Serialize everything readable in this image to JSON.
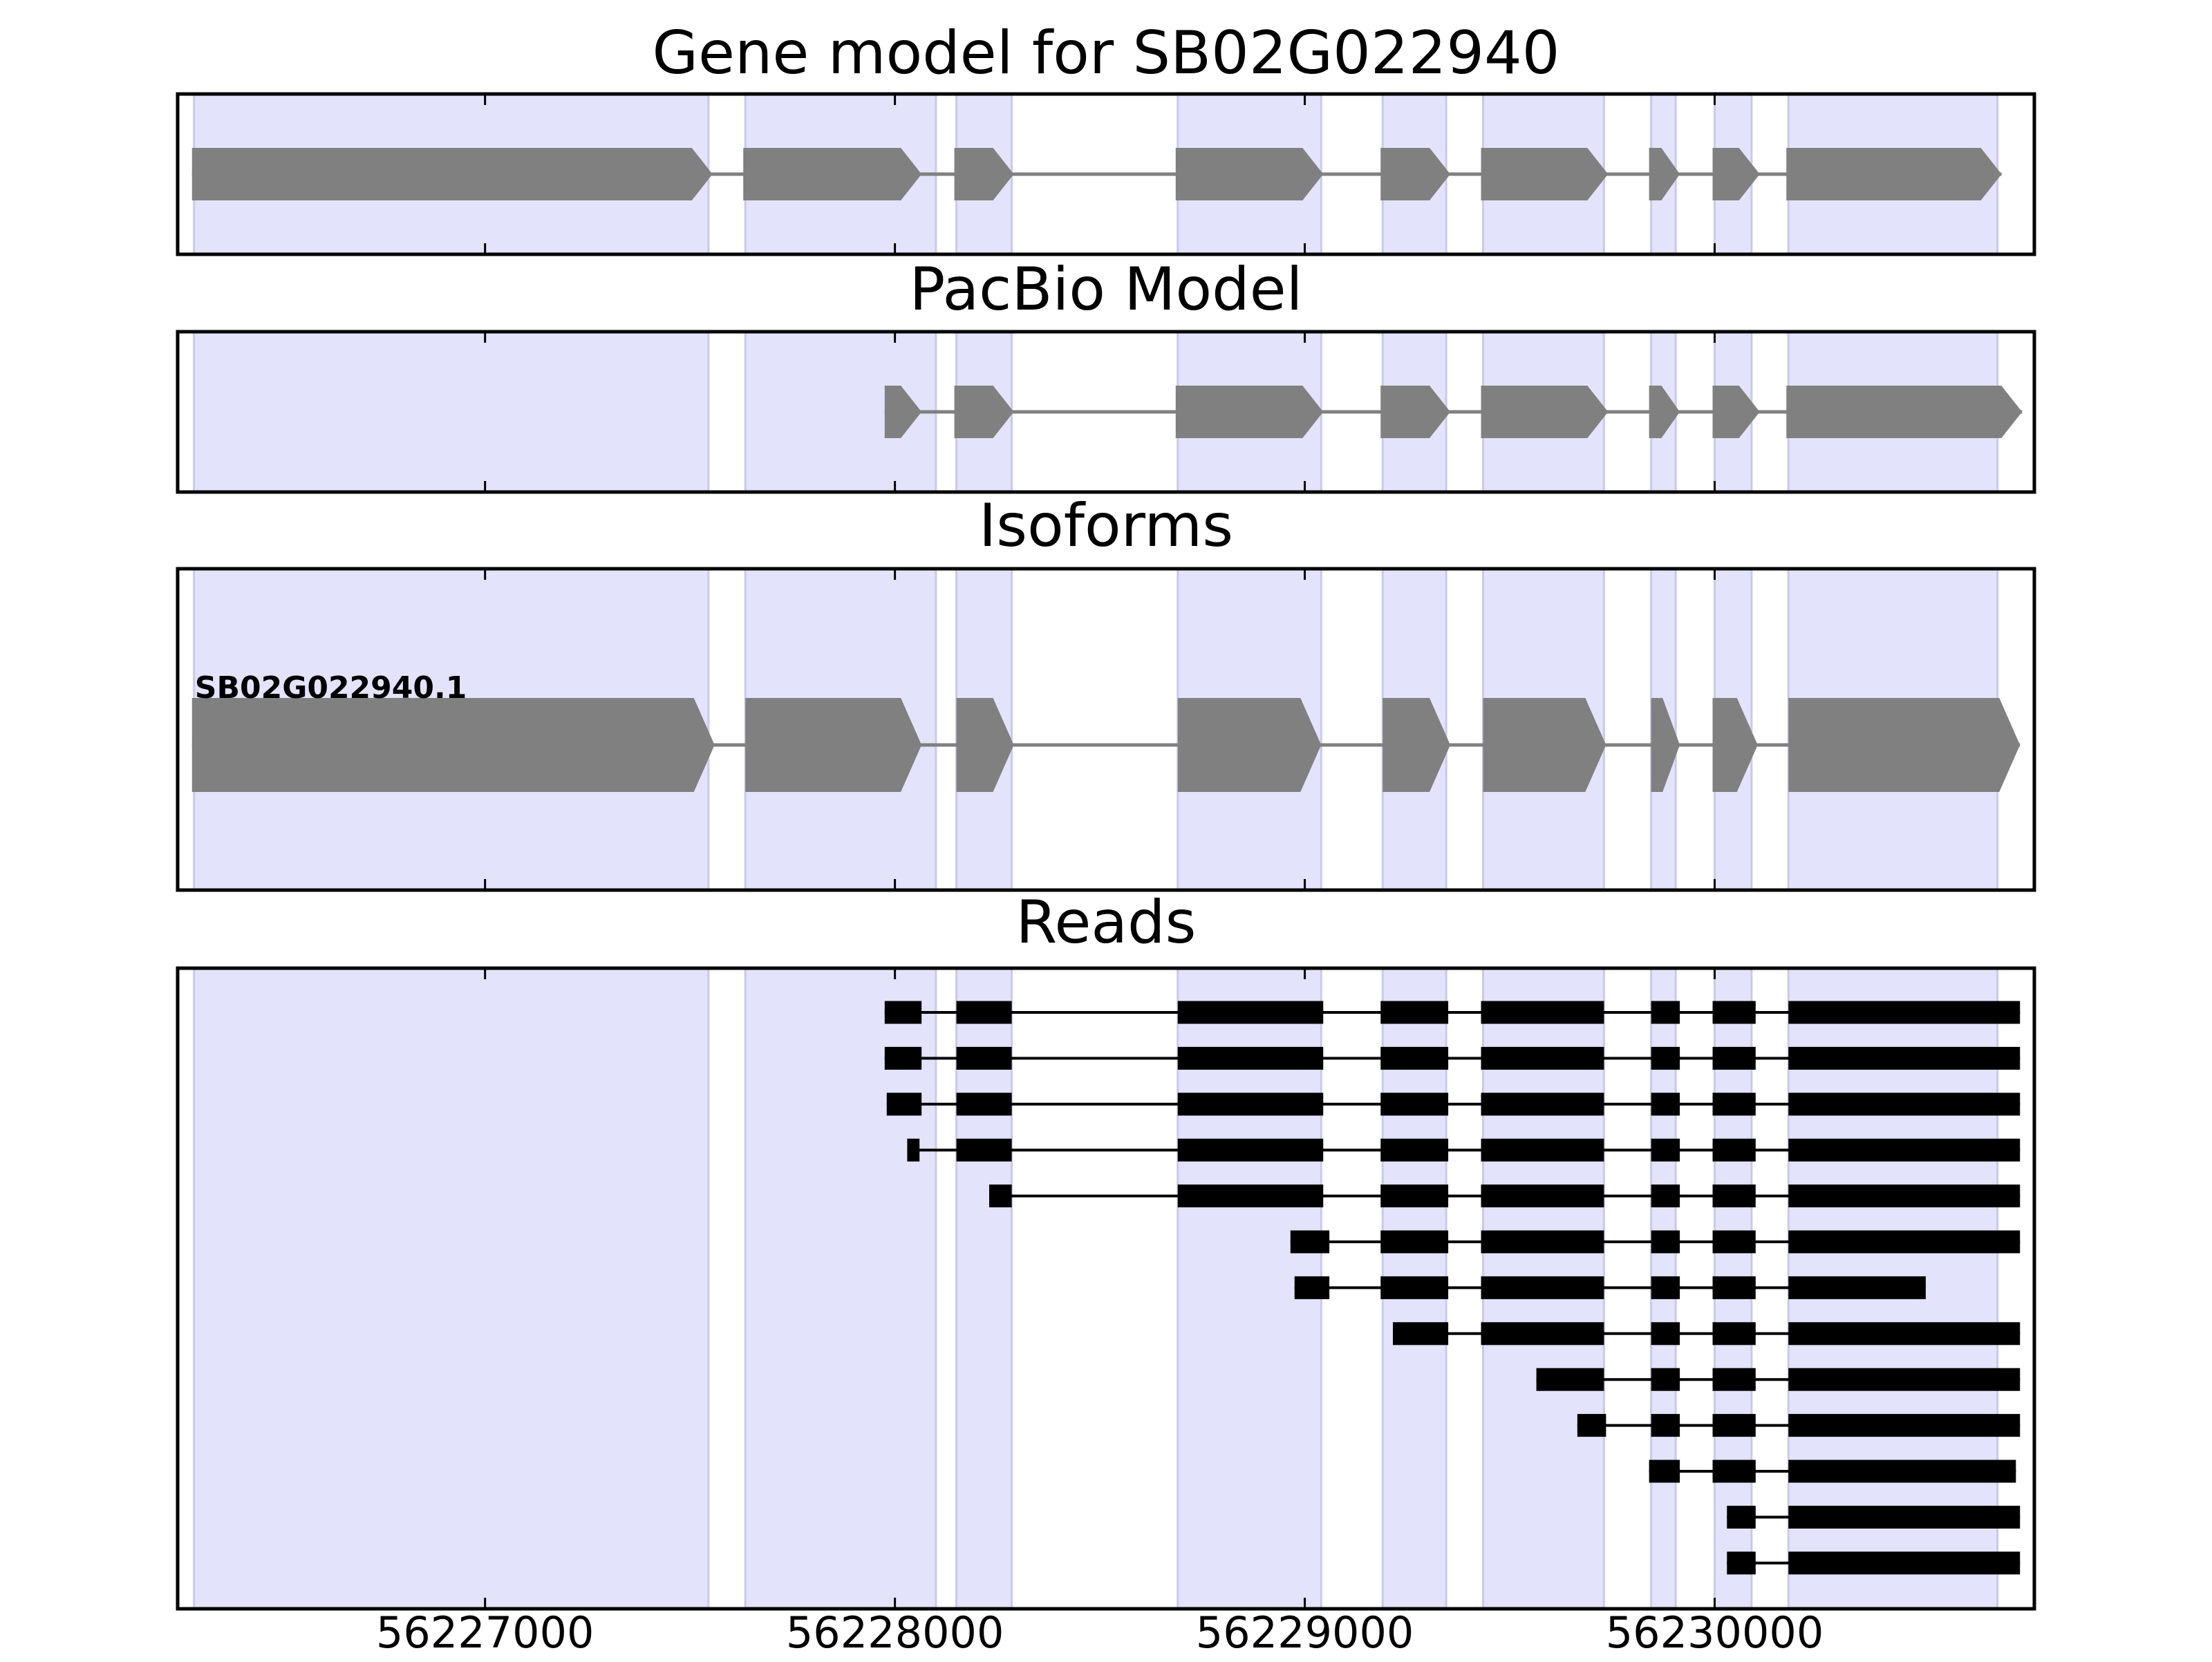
{
  "figure": {
    "panels": [
      {
        "id": "gene_model",
        "title": "Gene model for SB02G022940"
      },
      {
        "id": "pacbio_model",
        "title": "PacBio Model"
      },
      {
        "id": "isoforms",
        "title": "Isoforms"
      },
      {
        "id": "reads",
        "title": "Reads"
      }
    ]
  },
  "chart_data": {
    "type": "gene-structure",
    "x_axis": {
      "range": [
        56226250,
        56230780
      ],
      "ticks": [
        56227000,
        56228000,
        56229000,
        56230000
      ],
      "tick_labels": [
        "56227000",
        "56228000",
        "56229000",
        "56230000"
      ]
    },
    "colors": {
      "exon_shade": "#e3e3fc",
      "exon_shade_edge": "#c9c9ee",
      "model_feature": "#808080",
      "read": "#000000",
      "frame": "#000000"
    },
    "exon_regions": [
      [
        56226290,
        56227545
      ],
      [
        56227635,
        56228100
      ],
      [
        56228150,
        56228285
      ],
      [
        56228690,
        56229040
      ],
      [
        56229190,
        56229345
      ],
      [
        56229435,
        56229730
      ],
      [
        56229845,
        56229905
      ],
      [
        56230000,
        56230090
      ],
      [
        56230180,
        56230690
      ]
    ],
    "strand": "+",
    "gene_model": {
      "exons": [
        [
          56226285,
          56227555
        ],
        [
          56227630,
          56228065
        ],
        [
          56228145,
          56228290
        ],
        [
          56228685,
          56229045
        ],
        [
          56229185,
          56229355
        ],
        [
          56229430,
          56229740
        ],
        [
          56229840,
          56229915
        ],
        [
          56229995,
          56230110
        ],
        [
          56230175,
          56230700
        ]
      ]
    },
    "pacbio_model": {
      "exons": [
        [
          56227975,
          56228065
        ],
        [
          56228145,
          56228290
        ],
        [
          56228685,
          56229045
        ],
        [
          56229185,
          56229355
        ],
        [
          56229430,
          56229740
        ],
        [
          56229840,
          56229915
        ],
        [
          56229995,
          56230110
        ],
        [
          56230175,
          56230750
        ]
      ]
    },
    "isoforms": [
      {
        "name": "SB02G022940.1",
        "exons": [
          [
            56226285,
            56227560
          ],
          [
            56227635,
            56228065
          ],
          [
            56228150,
            56228290
          ],
          [
            56228690,
            56229040
          ],
          [
            56229190,
            56229355
          ],
          [
            56229435,
            56229735
          ],
          [
            56229845,
            56229915
          ],
          [
            56229995,
            56230105
          ],
          [
            56230180,
            56230745
          ]
        ]
      }
    ],
    "reads": [
      [
        [
          56227975,
          56228065
        ],
        [
          56228150,
          56228285
        ],
        [
          56228690,
          56229045
        ],
        [
          56229185,
          56229350
        ],
        [
          56229430,
          56229730
        ],
        [
          56229845,
          56229915
        ],
        [
          56229995,
          56230100
        ],
        [
          56230180,
          56230745
        ]
      ],
      [
        [
          56227975,
          56228065
        ],
        [
          56228150,
          56228285
        ],
        [
          56228690,
          56229045
        ],
        [
          56229185,
          56229350
        ],
        [
          56229430,
          56229730
        ],
        [
          56229845,
          56229915
        ],
        [
          56229995,
          56230100
        ],
        [
          56230180,
          56230745
        ]
      ],
      [
        [
          56227980,
          56228065
        ],
        [
          56228150,
          56228285
        ],
        [
          56228690,
          56229045
        ],
        [
          56229185,
          56229350
        ],
        [
          56229430,
          56229730
        ],
        [
          56229845,
          56229915
        ],
        [
          56229995,
          56230100
        ],
        [
          56230180,
          56230745
        ]
      ],
      [
        [
          56228030,
          56228060
        ],
        [
          56228150,
          56228285
        ],
        [
          56228690,
          56229045
        ],
        [
          56229185,
          56229350
        ],
        [
          56229430,
          56229730
        ],
        [
          56229845,
          56229915
        ],
        [
          56229995,
          56230100
        ],
        [
          56230180,
          56230745
        ]
      ],
      [
        [
          56228230,
          56228285
        ],
        [
          56228690,
          56229045
        ],
        [
          56229185,
          56229350
        ],
        [
          56229430,
          56229730
        ],
        [
          56229845,
          56229915
        ],
        [
          56229995,
          56230100
        ],
        [
          56230180,
          56230745
        ]
      ],
      [
        [
          56228965,
          56229060
        ],
        [
          56229185,
          56229350
        ],
        [
          56229430,
          56229730
        ],
        [
          56229845,
          56229915
        ],
        [
          56229995,
          56230100
        ],
        [
          56230180,
          56230745
        ]
      ],
      [
        [
          56228975,
          56229060
        ],
        [
          56229185,
          56229350
        ],
        [
          56229430,
          56229730
        ],
        [
          56229845,
          56229915
        ],
        [
          56229995,
          56230100
        ],
        [
          56230180,
          56230515
        ]
      ],
      [
        [
          56229215,
          56229350
        ],
        [
          56229430,
          56229730
        ],
        [
          56229845,
          56229915
        ],
        [
          56229995,
          56230100
        ],
        [
          56230180,
          56230745
        ]
      ],
      [
        [
          56229565,
          56229730
        ],
        [
          56229845,
          56229915
        ],
        [
          56229995,
          56230100
        ],
        [
          56230180,
          56230745
        ]
      ],
      [
        [
          56229665,
          56229735
        ],
        [
          56229845,
          56229915
        ],
        [
          56229995,
          56230100
        ],
        [
          56230180,
          56230745
        ]
      ],
      [
        [
          56229840,
          56229915
        ],
        [
          56229995,
          56230100
        ],
        [
          56230180,
          56230735
        ]
      ],
      [
        [
          56230030,
          56230100
        ],
        [
          56230180,
          56230745
        ]
      ],
      [
        [
          56230030,
          56230100
        ],
        [
          56230180,
          56230745
        ]
      ]
    ]
  }
}
